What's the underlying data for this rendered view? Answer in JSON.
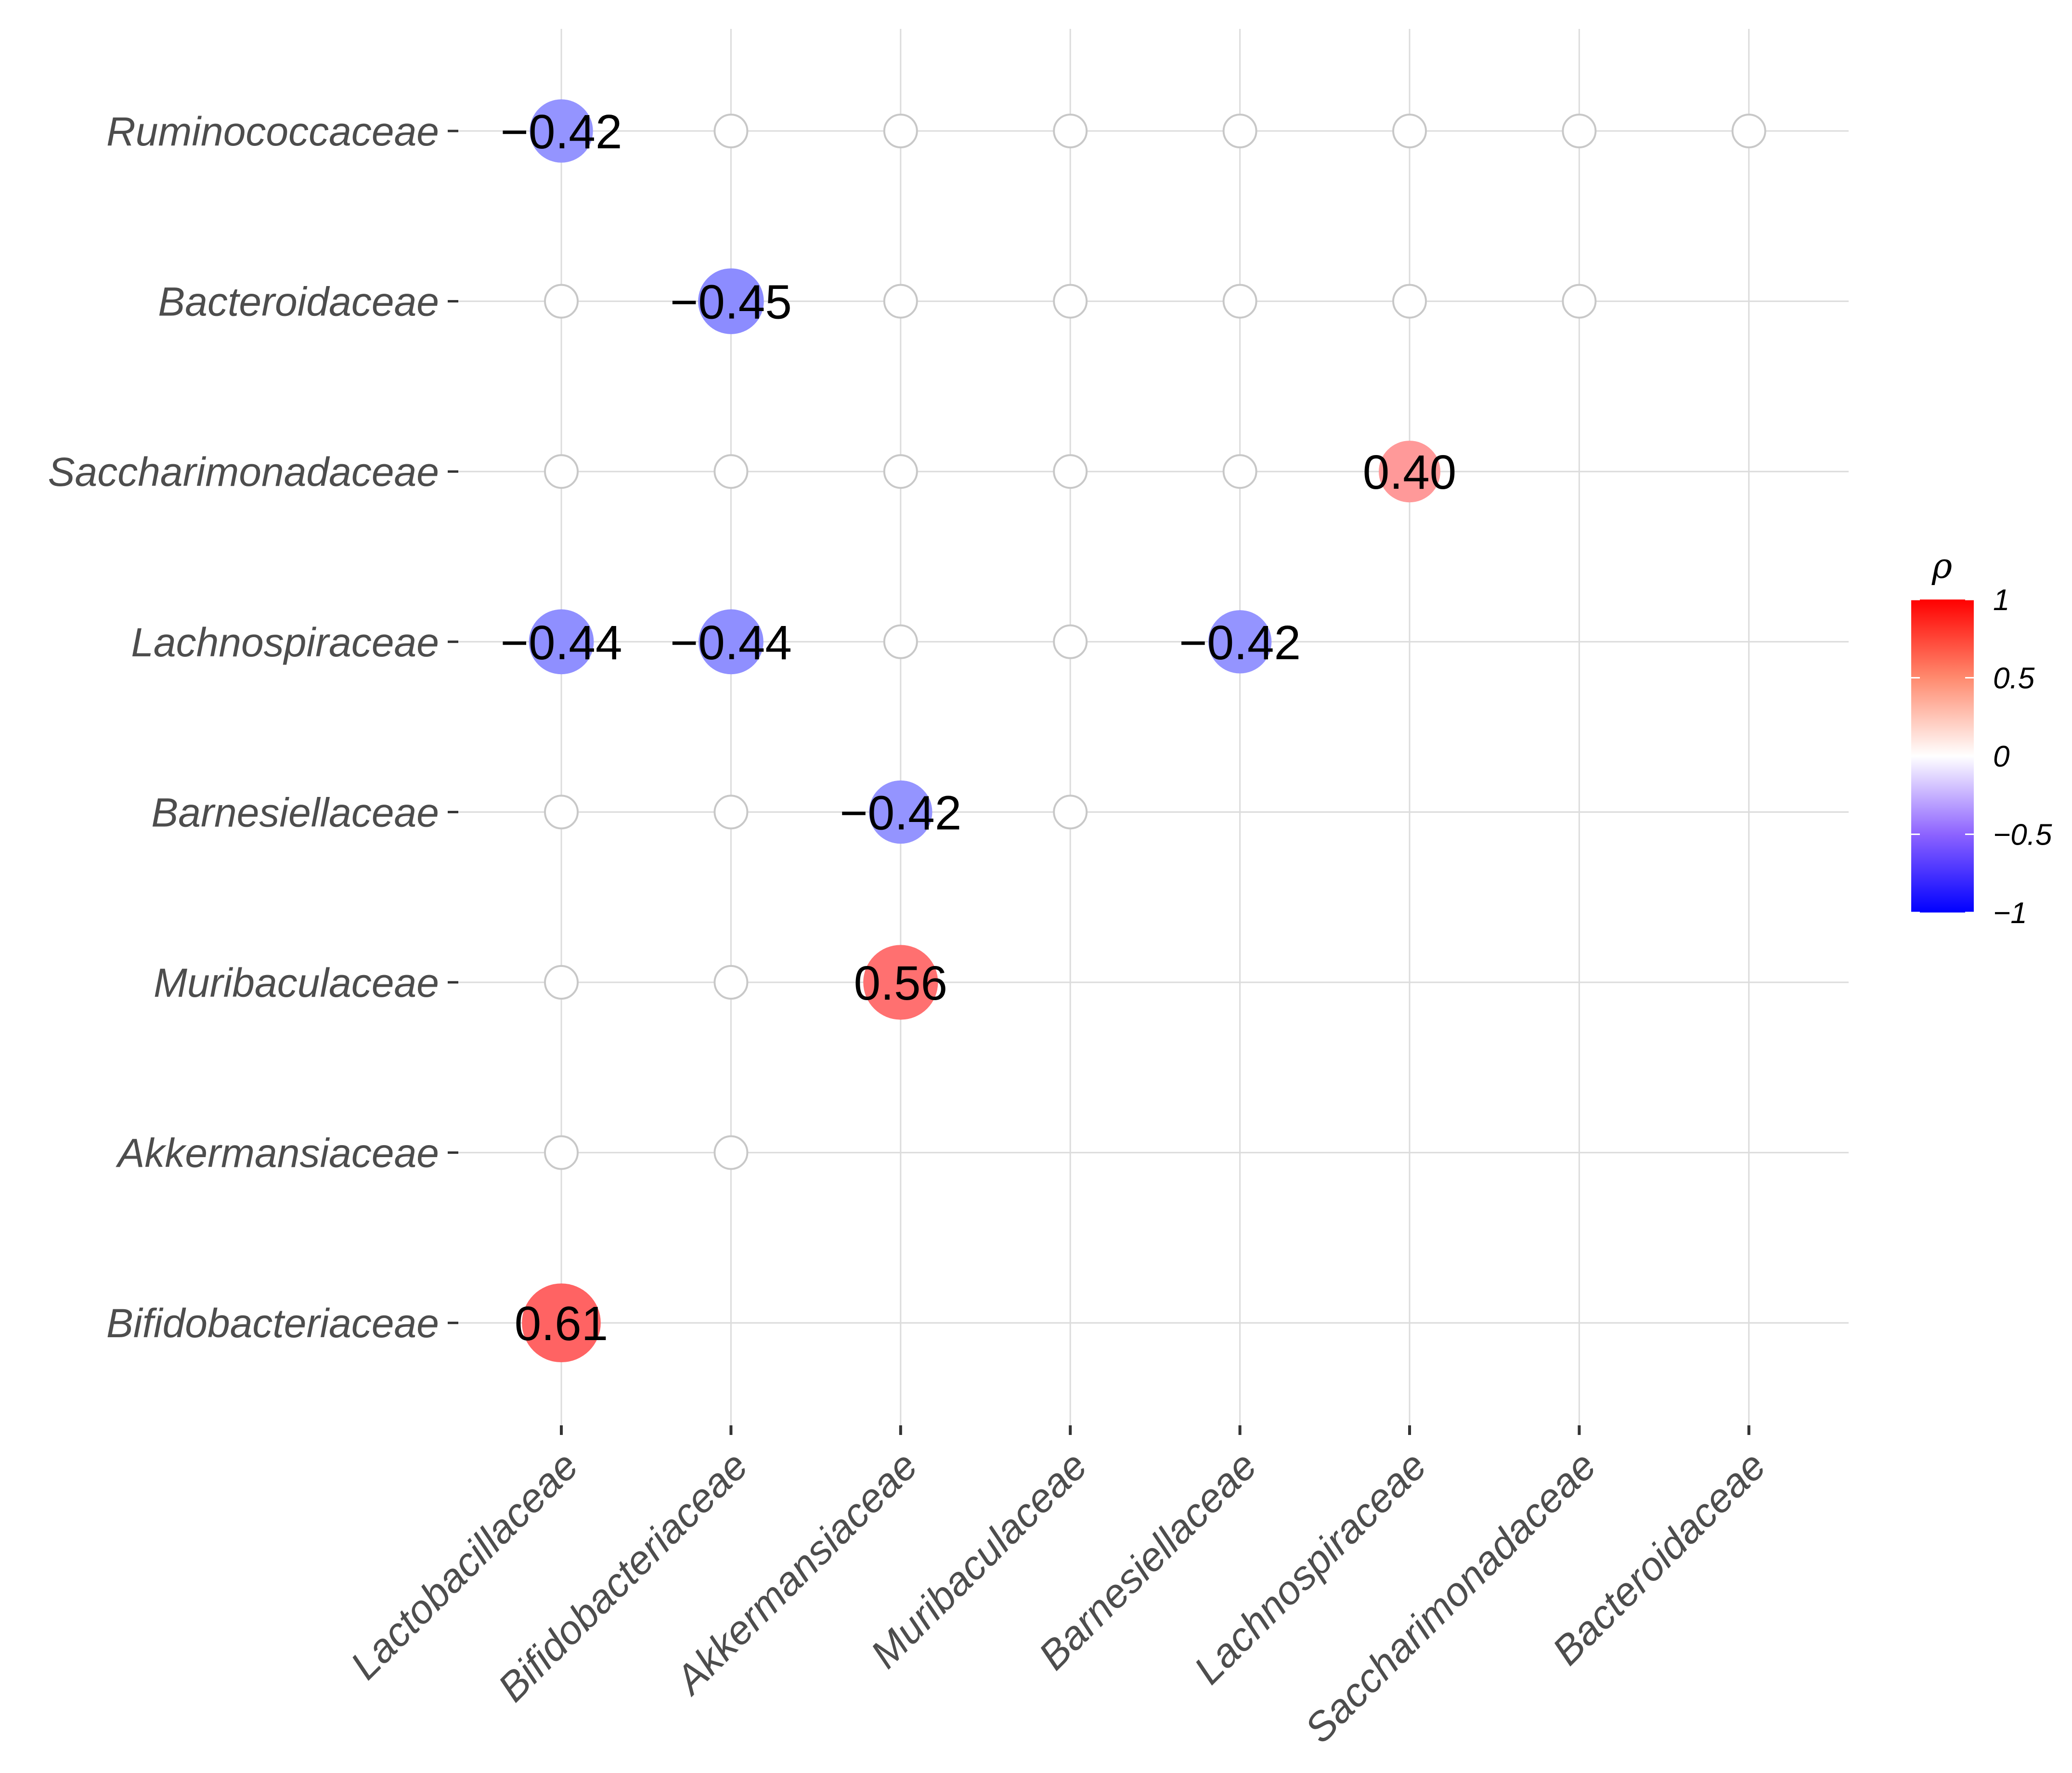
{
  "chart_data": {
    "type": "correlation-dot-matrix",
    "title": "",
    "xlabel": "",
    "ylabel": "",
    "x_categories": [
      "Lactobacillaceae",
      "Bifidobacteriaceae",
      "Akkermansiaceae",
      "Muribaculaceae",
      "Barnesiellaceae",
      "Lachnospiraceae",
      "Saccharimonadaceae",
      "Bacteroidaceae"
    ],
    "y_categories": [
      "Ruminococcaceae",
      "Bacteroidaceae",
      "Saccharimonadaceae",
      "Lachnospiraceae",
      "Barnesiellaceae",
      "Muribaculaceae",
      "Akkermansiaceae",
      "Bifidobacteriaceae"
    ],
    "cells": [
      {
        "row": "Ruminococcaceae",
        "col": "Lactobacillaceae",
        "value": -0.42,
        "label": "−0.42"
      },
      {
        "row": "Ruminococcaceae",
        "col": "Bifidobacteriaceae",
        "value": null
      },
      {
        "row": "Ruminococcaceae",
        "col": "Akkermansiaceae",
        "value": null
      },
      {
        "row": "Ruminococcaceae",
        "col": "Muribaculaceae",
        "value": null
      },
      {
        "row": "Ruminococcaceae",
        "col": "Barnesiellaceae",
        "value": null
      },
      {
        "row": "Ruminococcaceae",
        "col": "Lachnospiraceae",
        "value": null
      },
      {
        "row": "Ruminococcaceae",
        "col": "Saccharimonadaceae",
        "value": null
      },
      {
        "row": "Ruminococcaceae",
        "col": "Bacteroidaceae",
        "value": null
      },
      {
        "row": "Bacteroidaceae",
        "col": "Lactobacillaceae",
        "value": null
      },
      {
        "row": "Bacteroidaceae",
        "col": "Bifidobacteriaceae",
        "value": -0.45,
        "label": "−0.45"
      },
      {
        "row": "Bacteroidaceae",
        "col": "Akkermansiaceae",
        "value": null
      },
      {
        "row": "Bacteroidaceae",
        "col": "Muribaculaceae",
        "value": null
      },
      {
        "row": "Bacteroidaceae",
        "col": "Barnesiellaceae",
        "value": null
      },
      {
        "row": "Bacteroidaceae",
        "col": "Lachnospiraceae",
        "value": null
      },
      {
        "row": "Bacteroidaceae",
        "col": "Saccharimonadaceae",
        "value": null
      },
      {
        "row": "Saccharimonadaceae",
        "col": "Lactobacillaceae",
        "value": null
      },
      {
        "row": "Saccharimonadaceae",
        "col": "Bifidobacteriaceae",
        "value": null
      },
      {
        "row": "Saccharimonadaceae",
        "col": "Akkermansiaceae",
        "value": null
      },
      {
        "row": "Saccharimonadaceae",
        "col": "Muribaculaceae",
        "value": null
      },
      {
        "row": "Saccharimonadaceae",
        "col": "Barnesiellaceae",
        "value": null
      },
      {
        "row": "Saccharimonadaceae",
        "col": "Lachnospiraceae",
        "value": 0.4,
        "label": "0.40"
      },
      {
        "row": "Lachnospiraceae",
        "col": "Lactobacillaceae",
        "value": -0.44,
        "label": "−0.44"
      },
      {
        "row": "Lachnospiraceae",
        "col": "Bifidobacteriaceae",
        "value": -0.44,
        "label": "−0.44"
      },
      {
        "row": "Lachnospiraceae",
        "col": "Akkermansiaceae",
        "value": null
      },
      {
        "row": "Lachnospiraceae",
        "col": "Muribaculaceae",
        "value": null
      },
      {
        "row": "Lachnospiraceae",
        "col": "Barnesiellaceae",
        "value": -0.42,
        "label": "−0.42"
      },
      {
        "row": "Barnesiellaceae",
        "col": "Lactobacillaceae",
        "value": null
      },
      {
        "row": "Barnesiellaceae",
        "col": "Bifidobacteriaceae",
        "value": null
      },
      {
        "row": "Barnesiellaceae",
        "col": "Akkermansiaceae",
        "value": -0.42,
        "label": "−0.42"
      },
      {
        "row": "Barnesiellaceae",
        "col": "Muribaculaceae",
        "value": null
      },
      {
        "row": "Muribaculaceae",
        "col": "Lactobacillaceae",
        "value": null
      },
      {
        "row": "Muribaculaceae",
        "col": "Bifidobacteriaceae",
        "value": null
      },
      {
        "row": "Muribaculaceae",
        "col": "Akkermansiaceae",
        "value": 0.56,
        "label": "0.56"
      },
      {
        "row": "Akkermansiaceae",
        "col": "Lactobacillaceae",
        "value": null
      },
      {
        "row": "Akkermansiaceae",
        "col": "Bifidobacteriaceae",
        "value": null
      },
      {
        "row": "Bifidobacteriaceae",
        "col": "Lactobacillaceae",
        "value": 0.61,
        "label": "0.61"
      }
    ],
    "legend": {
      "title": "ρ",
      "placement": "right",
      "range": [
        -1,
        1
      ],
      "ticks": [
        {
          "value": 1,
          "label": "1"
        },
        {
          "value": 0.5,
          "label": "0.5"
        },
        {
          "value": 0,
          "label": "0"
        },
        {
          "value": -0.5,
          "label": "−0.5"
        },
        {
          "value": -1,
          "label": "−1"
        }
      ]
    },
    "colors": {
      "positive": "#ff0000",
      "neutral": "#ffffff",
      "negative": "#0000ff",
      "grid": "#dcdcdc",
      "empty_circle_stroke": "#c8c8c8",
      "text": "#4d4d4d"
    },
    "grid": true
  }
}
